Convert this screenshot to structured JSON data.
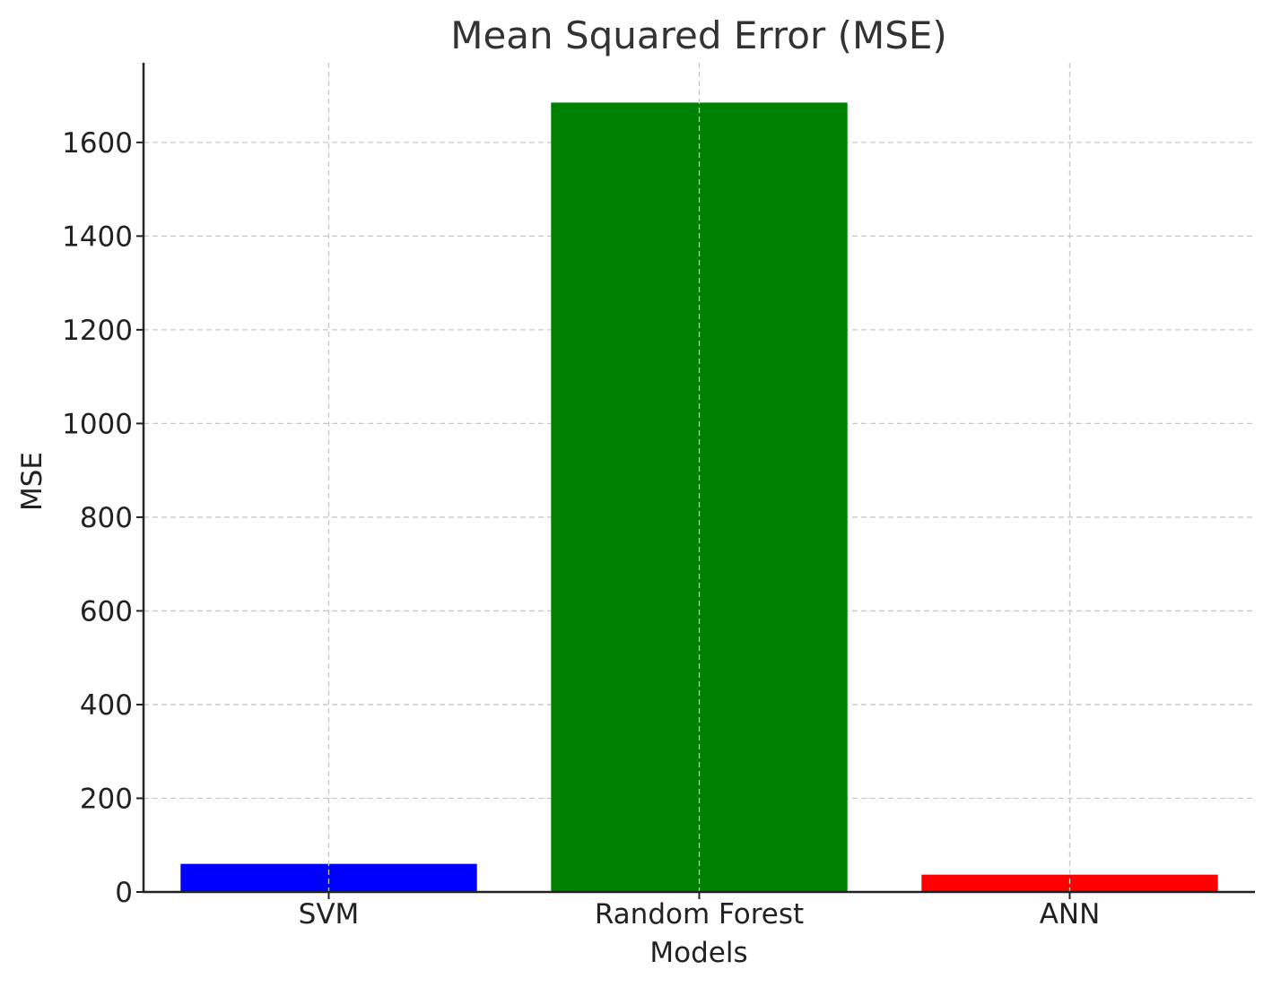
{
  "chart_data": {
    "type": "bar",
    "title": "Mean Squared Error (MSE)",
    "xlabel": "Models",
    "ylabel": "MSE",
    "categories": [
      "SVM",
      "Random Forest",
      "ANN"
    ],
    "values": [
      60,
      1685,
      37
    ],
    "colors": [
      "#0000ff",
      "#008000",
      "#ff0000"
    ],
    "ylim": [
      0,
      1770
    ],
    "yticks": [
      0,
      200,
      400,
      600,
      800,
      1000,
      1200,
      1400,
      1600
    ],
    "grid": true,
    "legend": "none"
  }
}
